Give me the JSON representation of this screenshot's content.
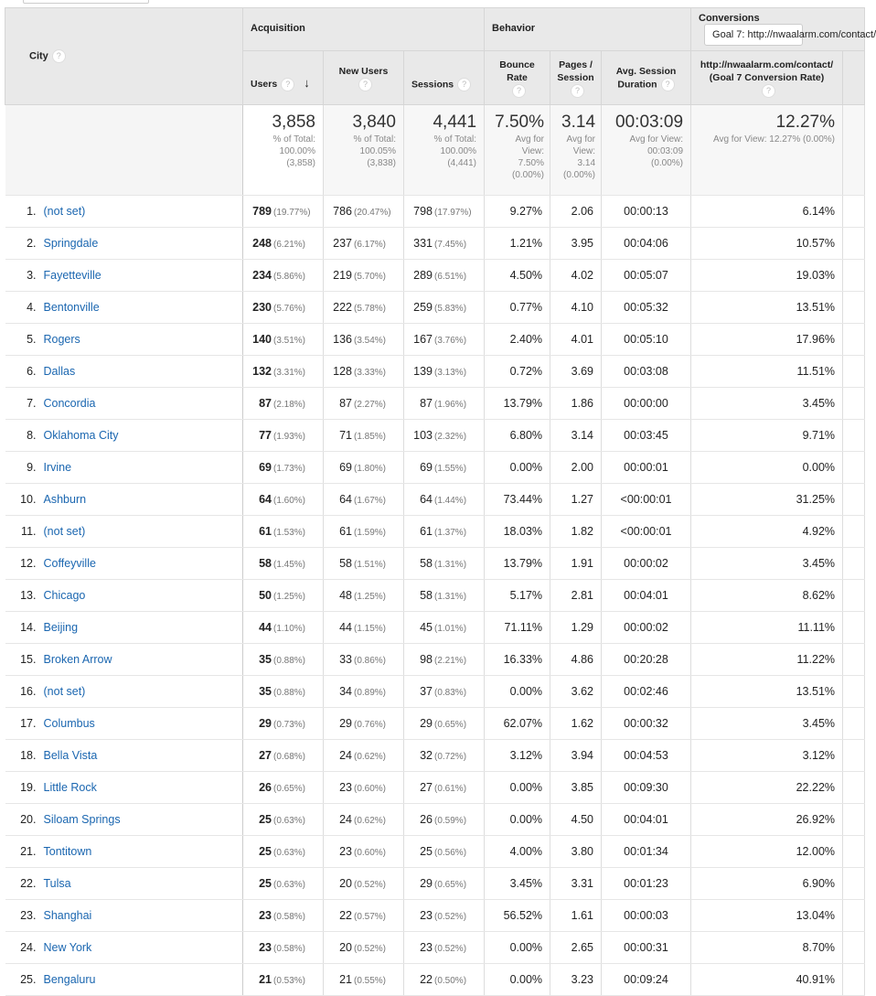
{
  "header": {
    "city": "City",
    "acquisition": "Acquisition",
    "behavior": "Behavior",
    "conversions": "Conversions",
    "goal_select": "Goal 7: http://nwaalarm.com/contact/",
    "users": "Users",
    "new_users": "New Users",
    "sessions": "Sessions",
    "bounce_rate": "Bounce Rate",
    "pages_session": "Pages / Session",
    "avg_duration": "Avg. Session Duration",
    "conv_rate": "http://nwaalarm.com/contact/ (Goal 7 Conversion Rate)",
    "help": "?",
    "sort_icon": "arrow-down"
  },
  "totals": {
    "users": {
      "value": "3,858",
      "l1": "% of Total:",
      "l2": "100.00%",
      "l3": "(3,858)"
    },
    "new_users": {
      "value": "3,840",
      "l1": "% of Total:",
      "l2": "100.05%",
      "l3": "(3,838)"
    },
    "sessions": {
      "value": "4,441",
      "l1": "% of Total:",
      "l2": "100.00%",
      "l3": "(4,441)"
    },
    "bounce": {
      "value": "7.50%",
      "l1": "Avg for",
      "l2": "View:",
      "l3": "7.50%",
      "l4": "(0.00%)"
    },
    "pages": {
      "value": "3.14",
      "l1": "Avg for",
      "l2": "View:",
      "l3": "3.14",
      "l4": "(0.00%)"
    },
    "duration": {
      "value": "00:03:09",
      "l1": "Avg for View:",
      "l2": "00:03:09",
      "l3": "(0.00%)"
    },
    "conv": {
      "value": "12.27%",
      "l1": "Avg for View: 12.27% (0.00%)"
    }
  },
  "rows": [
    [
      "1.",
      "(not set)",
      "789",
      "(19.77%)",
      "786",
      "(20.47%)",
      "798",
      "(17.97%)",
      "9.27%",
      "2.06",
      "00:00:13",
      "6.14%"
    ],
    [
      "2.",
      "Springdale",
      "248",
      "(6.21%)",
      "237",
      "(6.17%)",
      "331",
      "(7.45%)",
      "1.21%",
      "3.95",
      "00:04:06",
      "10.57%"
    ],
    [
      "3.",
      "Fayetteville",
      "234",
      "(5.86%)",
      "219",
      "(5.70%)",
      "289",
      "(6.51%)",
      "4.50%",
      "4.02",
      "00:05:07",
      "19.03%"
    ],
    [
      "4.",
      "Bentonville",
      "230",
      "(5.76%)",
      "222",
      "(5.78%)",
      "259",
      "(5.83%)",
      "0.77%",
      "4.10",
      "00:05:32",
      "13.51%"
    ],
    [
      "5.",
      "Rogers",
      "140",
      "(3.51%)",
      "136",
      "(3.54%)",
      "167",
      "(3.76%)",
      "2.40%",
      "4.01",
      "00:05:10",
      "17.96%"
    ],
    [
      "6.",
      "Dallas",
      "132",
      "(3.31%)",
      "128",
      "(3.33%)",
      "139",
      "(3.13%)",
      "0.72%",
      "3.69",
      "00:03:08",
      "11.51%"
    ],
    [
      "7.",
      "Concordia",
      "87",
      "(2.18%)",
      "87",
      "(2.27%)",
      "87",
      "(1.96%)",
      "13.79%",
      "1.86",
      "00:00:00",
      "3.45%"
    ],
    [
      "8.",
      "Oklahoma City",
      "77",
      "(1.93%)",
      "71",
      "(1.85%)",
      "103",
      "(2.32%)",
      "6.80%",
      "3.14",
      "00:03:45",
      "9.71%"
    ],
    [
      "9.",
      "Irvine",
      "69",
      "(1.73%)",
      "69",
      "(1.80%)",
      "69",
      "(1.55%)",
      "0.00%",
      "2.00",
      "00:00:01",
      "0.00%"
    ],
    [
      "10.",
      "Ashburn",
      "64",
      "(1.60%)",
      "64",
      "(1.67%)",
      "64",
      "(1.44%)",
      "73.44%",
      "1.27",
      "<00:00:01",
      "31.25%"
    ],
    [
      "11.",
      "(not set)",
      "61",
      "(1.53%)",
      "61",
      "(1.59%)",
      "61",
      "(1.37%)",
      "18.03%",
      "1.82",
      "<00:00:01",
      "4.92%"
    ],
    [
      "12.",
      "Coffeyville",
      "58",
      "(1.45%)",
      "58",
      "(1.51%)",
      "58",
      "(1.31%)",
      "13.79%",
      "1.91",
      "00:00:02",
      "3.45%"
    ],
    [
      "13.",
      "Chicago",
      "50",
      "(1.25%)",
      "48",
      "(1.25%)",
      "58",
      "(1.31%)",
      "5.17%",
      "2.81",
      "00:04:01",
      "8.62%"
    ],
    [
      "14.",
      "Beijing",
      "44",
      "(1.10%)",
      "44",
      "(1.15%)",
      "45",
      "(1.01%)",
      "71.11%",
      "1.29",
      "00:00:02",
      "11.11%"
    ],
    [
      "15.",
      "Broken Arrow",
      "35",
      "(0.88%)",
      "33",
      "(0.86%)",
      "98",
      "(2.21%)",
      "16.33%",
      "4.86",
      "00:20:28",
      "11.22%"
    ],
    [
      "16.",
      "(not set)",
      "35",
      "(0.88%)",
      "34",
      "(0.89%)",
      "37",
      "(0.83%)",
      "0.00%",
      "3.62",
      "00:02:46",
      "13.51%"
    ],
    [
      "17.",
      "Columbus",
      "29",
      "(0.73%)",
      "29",
      "(0.76%)",
      "29",
      "(0.65%)",
      "62.07%",
      "1.62",
      "00:00:32",
      "3.45%"
    ],
    [
      "18.",
      "Bella Vista",
      "27",
      "(0.68%)",
      "24",
      "(0.62%)",
      "32",
      "(0.72%)",
      "3.12%",
      "3.94",
      "00:04:53",
      "3.12%"
    ],
    [
      "19.",
      "Little Rock",
      "26",
      "(0.65%)",
      "23",
      "(0.60%)",
      "27",
      "(0.61%)",
      "0.00%",
      "3.85",
      "00:09:30",
      "22.22%"
    ],
    [
      "20.",
      "Siloam Springs",
      "25",
      "(0.63%)",
      "24",
      "(0.62%)",
      "26",
      "(0.59%)",
      "0.00%",
      "4.50",
      "00:04:01",
      "26.92%"
    ],
    [
      "21.",
      "Tontitown",
      "25",
      "(0.63%)",
      "23",
      "(0.60%)",
      "25",
      "(0.56%)",
      "4.00%",
      "3.80",
      "00:01:34",
      "12.00%"
    ],
    [
      "22.",
      "Tulsa",
      "25",
      "(0.63%)",
      "20",
      "(0.52%)",
      "29",
      "(0.65%)",
      "3.45%",
      "3.31",
      "00:01:23",
      "6.90%"
    ],
    [
      "23.",
      "Shanghai",
      "23",
      "(0.58%)",
      "22",
      "(0.57%)",
      "23",
      "(0.52%)",
      "56.52%",
      "1.61",
      "00:00:03",
      "13.04%"
    ],
    [
      "24.",
      "New York",
      "23",
      "(0.58%)",
      "20",
      "(0.52%)",
      "23",
      "(0.52%)",
      "0.00%",
      "2.65",
      "00:00:31",
      "8.70%"
    ],
    [
      "25.",
      "Bengaluru",
      "21",
      "(0.53%)",
      "21",
      "(0.55%)",
      "22",
      "(0.50%)",
      "0.00%",
      "3.23",
      "00:09:24",
      "40.91%"
    ]
  ]
}
